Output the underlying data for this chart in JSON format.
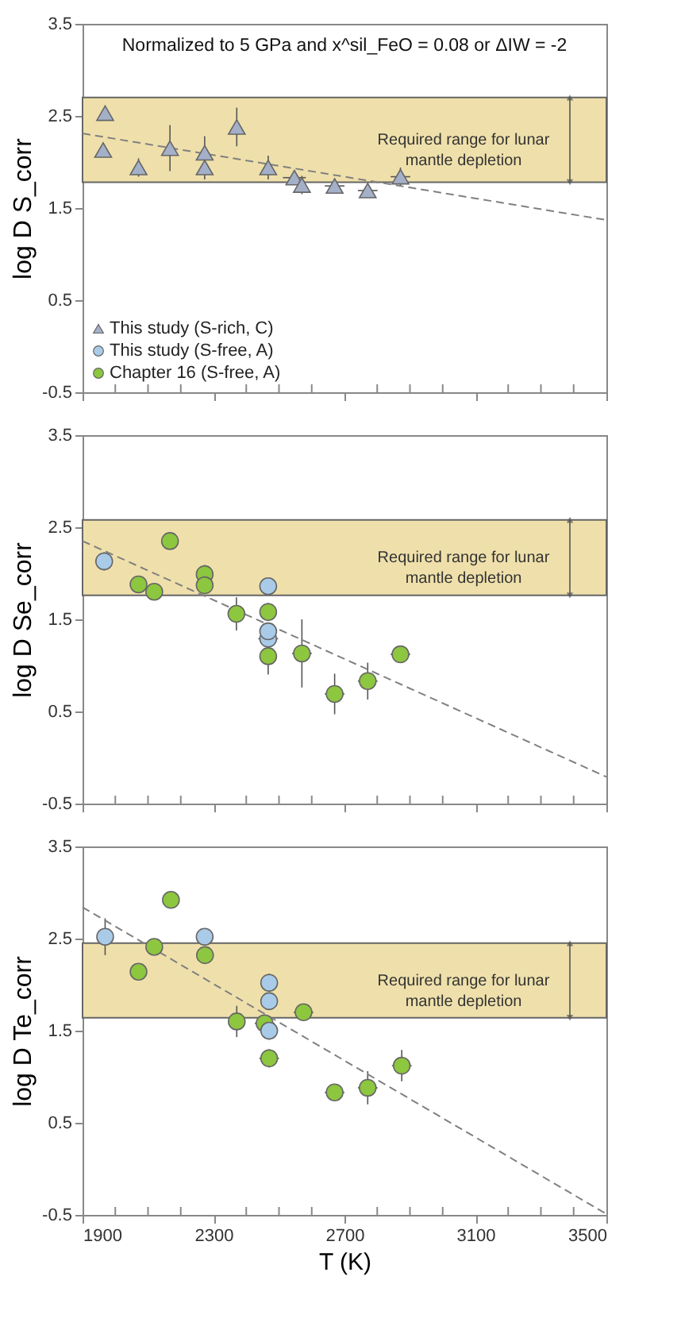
{
  "chart_data": [
    {
      "type": "scatter",
      "title": "Normalized to 5 GPa and x^sil_FeO = 0.08 or ΔIW = -2",
      "ylabel": "log D S_corr",
      "xlim": [
        1900,
        3500
      ],
      "ylim": [
        -0.5,
        3.5
      ],
      "xticks": [
        1900,
        {
          "value": 2000,
          "label": null
        },
        {
          "value": 2100,
          "label": null
        },
        {
          "value": 2200,
          "label": null
        },
        2300,
        {
          "value": 2400,
          "label": null
        },
        {
          "value": 2500,
          "label": null
        },
        {
          "value": 2600,
          "label": null
        },
        2700,
        {
          "value": 2800,
          "label": null
        },
        {
          "value": 2900,
          "label": null
        },
        {
          "value": 3000,
          "label": null
        },
        3100,
        {
          "value": 3200,
          "label": null
        },
        {
          "value": 3300,
          "label": null
        },
        {
          "value": 3400,
          "label": null
        },
        3500
      ],
      "yticks": [
        -0.5,
        0.5,
        1.5,
        2.5,
        3.5
      ],
      "tick_labels": "y",
      "grid": false,
      "legend": "bottom left",
      "bands": [
        {
          "axis": "y",
          "from": 1.78,
          "to": 2.7,
          "label": "Required range for lunar\nmantle depletion",
          "color": "#efe0ab"
        }
      ],
      "series": [
        {
          "name": "This study (S-rich, C)",
          "color": "#a4b0c8",
          "marker": "triangle",
          "x": [
            1969,
            1963,
            2071,
            2167,
            2273,
            2273,
            2371,
            2467,
            2547,
            2570,
            2670,
            2771,
            2871
          ],
          "values": [
            2.53,
            2.13,
            1.94,
            2.15,
            2.1,
            1.94,
            2.38,
            1.94,
            1.83,
            1.75,
            1.74,
            1.69,
            1.84
          ],
          "errors": [
            null,
            0.05,
            0.1,
            0.25,
            0.18,
            0.13,
            0.21,
            0.13,
            0.07,
            0.1,
            0.08,
            0.07,
            0.1
          ],
          "xerrors": [
            null,
            null,
            null,
            null,
            null,
            null,
            null,
            null,
            35,
            null,
            30,
            30,
            30
          ]
        },
        {
          "name": "This study (S-free, A)",
          "color": "#a9cbe8",
          "marker": "circle"
        },
        {
          "name": "Chapter 16 (S-free, A)",
          "color": "#8dc63f",
          "marker": "circle"
        },
        {
          "type": "line",
          "color": "#808080",
          "line_style": "dashed",
          "x": [
            1900,
            3500
          ],
          "values": [
            2.31,
            1.37
          ]
        }
      ]
    },
    {
      "type": "scatter",
      "ylabel": "log D Se_corr",
      "xlim": [
        1900,
        3500
      ],
      "ylim": [
        -0.5,
        3.5
      ],
      "xticks": [
        1900,
        {
          "value": 2000,
          "label": null
        },
        {
          "value": 2100,
          "label": null
        },
        {
          "value": 2200,
          "label": null
        },
        2300,
        {
          "value": 2400,
          "label": null
        },
        {
          "value": 2500,
          "label": null
        },
        {
          "value": 2600,
          "label": null
        },
        2700,
        {
          "value": 2800,
          "label": null
        },
        {
          "value": 2900,
          "label": null
        },
        {
          "value": 3000,
          "label": null
        },
        3100,
        {
          "value": 3200,
          "label": null
        },
        {
          "value": 3300,
          "label": null
        },
        {
          "value": 3400,
          "label": null
        },
        3500
      ],
      "yticks": [
        -0.5,
        0.5,
        1.5,
        2.5,
        3.5
      ],
      "tick_labels": "y",
      "grid": false,
      "bands": [
        {
          "axis": "y",
          "from": 1.76,
          "to": 2.58,
          "label": "Required range for lunar\nmantle depletion",
          "color": "#efe0ab"
        }
      ],
      "series": [
        {
          "color": "#8dc63f",
          "marker": "circle",
          "x": [
            2071,
            2119,
            2167,
            2273,
            2273,
            2370,
            2451,
            2467,
            2467,
            2570,
            2670,
            2771,
            2871
          ],
          "values": [
            1.88,
            1.8,
            2.35,
            1.99,
            1.87,
            1.56,
            null,
            1.58,
            1.1,
            1.13,
            0.69,
            0.83,
            1.12
          ],
          "errors": [
            0.08,
            null,
            null,
            0.1,
            null,
            0.18,
            null,
            0.1,
            0.2,
            0.37,
            0.22,
            0.2,
            0.07
          ],
          "xerrors": [
            null,
            null,
            null,
            null,
            null,
            null,
            null,
            null,
            null,
            30,
            30,
            30,
            30
          ]
        },
        {
          "color": "#a9cbe8",
          "marker": "circle",
          "x": [
            1966,
            2467,
            2467,
            2467
          ],
          "values": [
            2.13,
            1.86,
            1.29,
            1.37
          ],
          "errors": [
            0.1,
            null,
            null,
            null
          ],
          "xerrors": [
            null,
            null,
            30,
            null
          ]
        },
        {
          "type": "line",
          "color": "#808080",
          "line_style": "dashed",
          "x": [
            1900,
            3500
          ],
          "values": [
            2.35,
            -0.21
          ]
        }
      ]
    },
    {
      "type": "scatter",
      "ylabel": "log D Te_corr",
      "xlabel": "T (K)",
      "xlim": [
        1900,
        3500
      ],
      "ylim": [
        -0.5,
        3.5
      ],
      "xticks": [
        1900,
        {
          "value": 2000,
          "label": null
        },
        {
          "value": 2100,
          "label": null
        },
        {
          "value": 2200,
          "label": null
        },
        2300,
        {
          "value": 2400,
          "label": null
        },
        {
          "value": 2500,
          "label": null
        },
        {
          "value": 2600,
          "label": null
        },
        2700,
        {
          "value": 2800,
          "label": null
        },
        {
          "value": 2900,
          "label": null
        },
        {
          "value": 3000,
          "label": null
        },
        3100,
        {
          "value": 3200,
          "label": null
        },
        {
          "value": 3300,
          "label": null
        },
        {
          "value": 3400,
          "label": null
        },
        3500
      ],
      "yticks": [
        -0.5,
        0.5,
        1.5,
        2.5,
        3.5
      ],
      "grid": false,
      "bands": [
        {
          "axis": "y",
          "from": 1.64,
          "to": 2.45,
          "label": "Required range for lunar\nmantle depletion",
          "color": "#efe0ab"
        }
      ],
      "series": [
        {
          "color": "#8dc63f",
          "marker": "circle",
          "x": [
            2071,
            2119,
            2170,
            2274,
            2371,
            2456,
            null,
            2470,
            2575,
            2670,
            2771,
            2875
          ],
          "values": [
            2.14,
            2.41,
            2.92,
            2.32,
            1.6,
            1.58,
            null,
            1.2,
            1.7,
            0.83,
            0.88,
            1.12
          ],
          "errors": [
            0.06,
            null,
            0.06,
            0.08,
            0.17,
            null,
            null,
            0.1,
            null,
            0.08,
            0.18,
            0.17
          ],
          "xerrors": [
            null,
            null,
            null,
            null,
            null,
            30,
            null,
            30,
            30,
            30,
            30,
            30
          ]
        },
        {
          "color": "#a9cbe8",
          "marker": "circle",
          "x": [
            1969,
            2273,
            2470,
            2470,
            2470
          ],
          "values": [
            2.52,
            2.52,
            2.02,
            1.82,
            1.5
          ],
          "errors": [
            0.2,
            null,
            0.1,
            null,
            0.1
          ],
          "xerrors": [
            null,
            null,
            null,
            null,
            null
          ]
        },
        {
          "type": "line",
          "color": "#808080",
          "line_style": "dashed",
          "x": [
            1900,
            3500
          ],
          "values": [
            2.84,
            -0.49
          ]
        }
      ]
    }
  ]
}
